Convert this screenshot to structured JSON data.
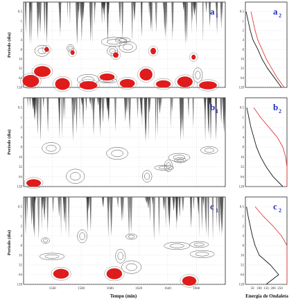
{
  "chart_data": {
    "type": "heatmap",
    "title": "",
    "time_axis": {
      "label": "Tempo (min)",
      "ticks": [
        "1560",
        "1580",
        "1600",
        "1620",
        "1640",
        "1660"
      ],
      "range": [
        1540,
        1680
      ]
    },
    "period_axis": {
      "label": "Período (dia)",
      "ticks": [
        "0.5",
        "1",
        "2",
        "4",
        "8",
        "16",
        "32",
        "64",
        "128"
      ],
      "range": [
        0.25,
        128
      ],
      "scale": "log"
    },
    "spectrum_axis": {
      "label": "Energia de Ondaleta",
      "ticks": [
        "50",
        "100",
        "150",
        "200",
        "250"
      ],
      "range": [
        0,
        300
      ]
    },
    "panels": [
      {
        "tag": "a",
        "sub": "1",
        "spectrum_tag": "a",
        "spectrum_sub": "2",
        "scalogram": {
          "significant_blobs": [
            {
              "t": 1545,
              "period": 80
            },
            {
              "t": 1553,
              "period": 40
            },
            {
              "t": 1567,
              "period": 100
            },
            {
              "t": 1585,
              "period": 110
            },
            {
              "t": 1598,
              "period": 60
            },
            {
              "t": 1612,
              "period": 95
            },
            {
              "t": 1625,
              "period": 50
            },
            {
              "t": 1637,
              "period": 100
            },
            {
              "t": 1652,
              "period": 85
            },
            {
              "t": 1668,
              "period": 110
            },
            {
              "t": 1556,
              "period": 8
            },
            {
              "t": 1574,
              "period": 10
            },
            {
              "t": 1604,
              "period": 12
            },
            {
              "t": 1630,
              "period": 9
            },
            {
              "t": 1658,
              "period": 14
            }
          ]
        },
        "global_spectrum": {
          "period": [
            0.5,
            1,
            2,
            4,
            8,
            16,
            32,
            64,
            128
          ],
          "energy": [
            5,
            20,
            35,
            55,
            90,
            120,
            160,
            210,
            260
          ],
          "significance": [
            40,
            55,
            70,
            90,
            120,
            150,
            190,
            230,
            280
          ]
        }
      },
      {
        "tag": "b",
        "sub": "1",
        "spectrum_tag": "b",
        "spectrum_sub": "2",
        "scalogram": {
          "significant_blobs": [
            {
              "t": 1547,
              "period": 100
            }
          ]
        },
        "global_spectrum": {
          "period": [
            0.5,
            1,
            2,
            4,
            8,
            16,
            32,
            64,
            128
          ],
          "energy": [
            10,
            25,
            40,
            60,
            80,
            110,
            150,
            200,
            270
          ],
          "significance": [
            60,
            110,
            170,
            230,
            270,
            290,
            300,
            300,
            300
          ]
        }
      },
      {
        "tag": "c",
        "sub": "1",
        "spectrum_tag": "c",
        "spectrum_sub": "2",
        "scalogram": {
          "significant_blobs": [
            {
              "t": 1566,
              "period": 60
            },
            {
              "t": 1603,
              "period": 60
            },
            {
              "t": 1655,
              "period": 100
            }
          ]
        },
        "global_spectrum": {
          "period": [
            0.5,
            1,
            2,
            4,
            8,
            16,
            32,
            64,
            128
          ],
          "energy": [
            8,
            20,
            35,
            50,
            70,
            100,
            180,
            240,
            150
          ],
          "significance": [
            70,
            130,
            200,
            260,
            300,
            300,
            300,
            300,
            300
          ]
        }
      }
    ],
    "colors": {
      "significant": "#e01b1b",
      "contour": "#444444",
      "significance_curve": "#e23a3a",
      "spectrum": "#111111",
      "grid": "#bfbfbf",
      "tag": "#1f2fbf"
    }
  }
}
